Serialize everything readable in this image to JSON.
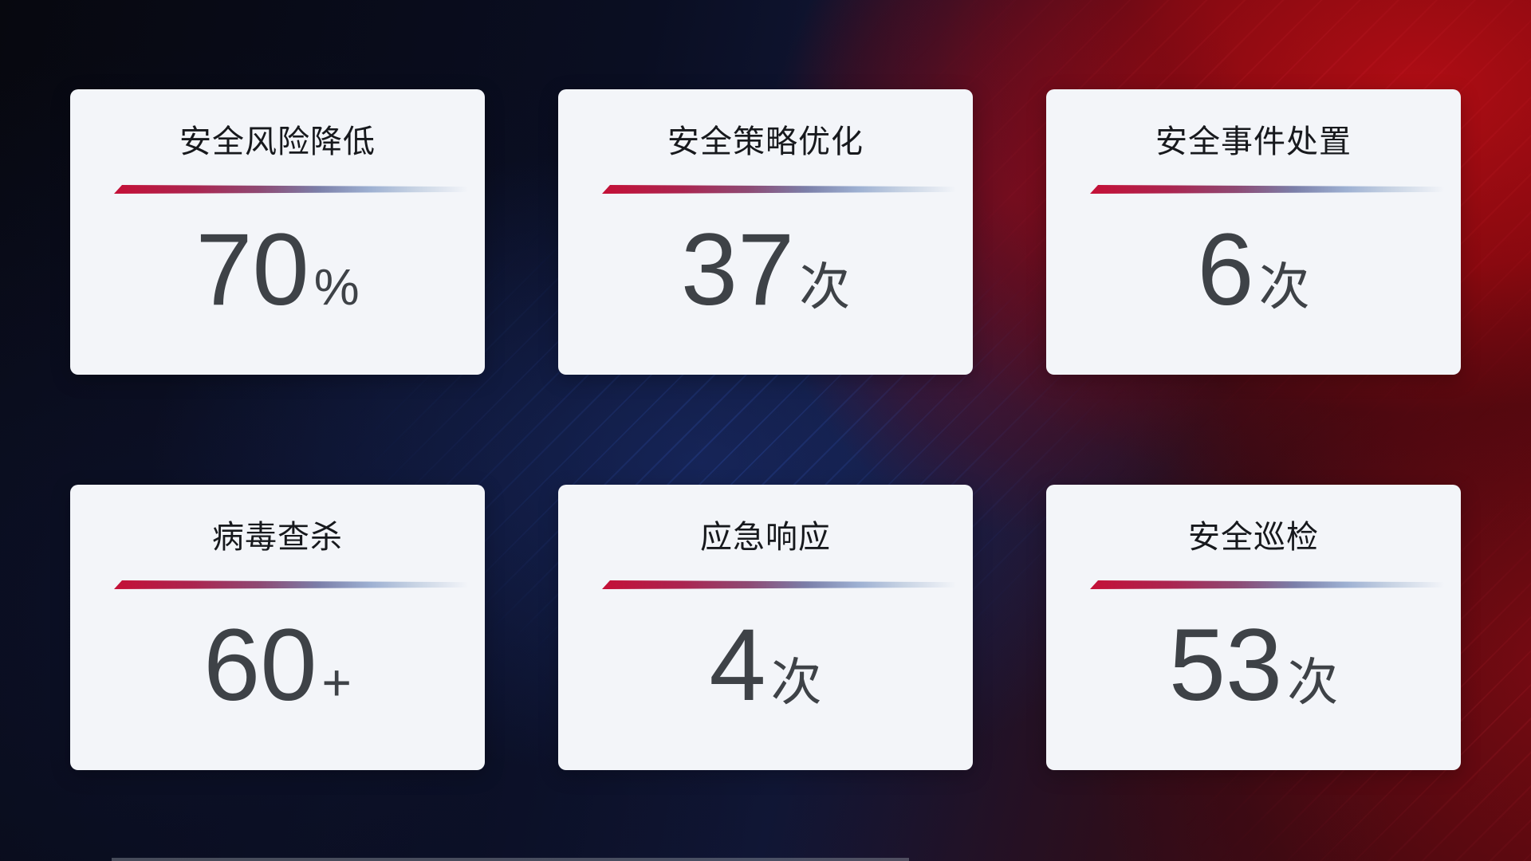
{
  "theme": {
    "card_bg": "#f3f5f9",
    "title_color": "#17191d",
    "value_color": "#3e4247",
    "divider_red": "#c41037",
    "divider_blue": "#9db0d2",
    "bg_accent_red": "#a50d12",
    "bg_accent_navy": "#121a3e"
  },
  "cards": [
    {
      "title": "安全风险降低",
      "value": "70",
      "unit": "%"
    },
    {
      "title": "安全策略优化",
      "value": "37",
      "unit": "次"
    },
    {
      "title": "安全事件处置",
      "value": "6",
      "unit": "次"
    },
    {
      "title": "病毒查杀",
      "value": "60",
      "unit": "+"
    },
    {
      "title": "应急响应",
      "value": "4",
      "unit": "次"
    },
    {
      "title": "安全巡检",
      "value": "53",
      "unit": "次"
    }
  ]
}
